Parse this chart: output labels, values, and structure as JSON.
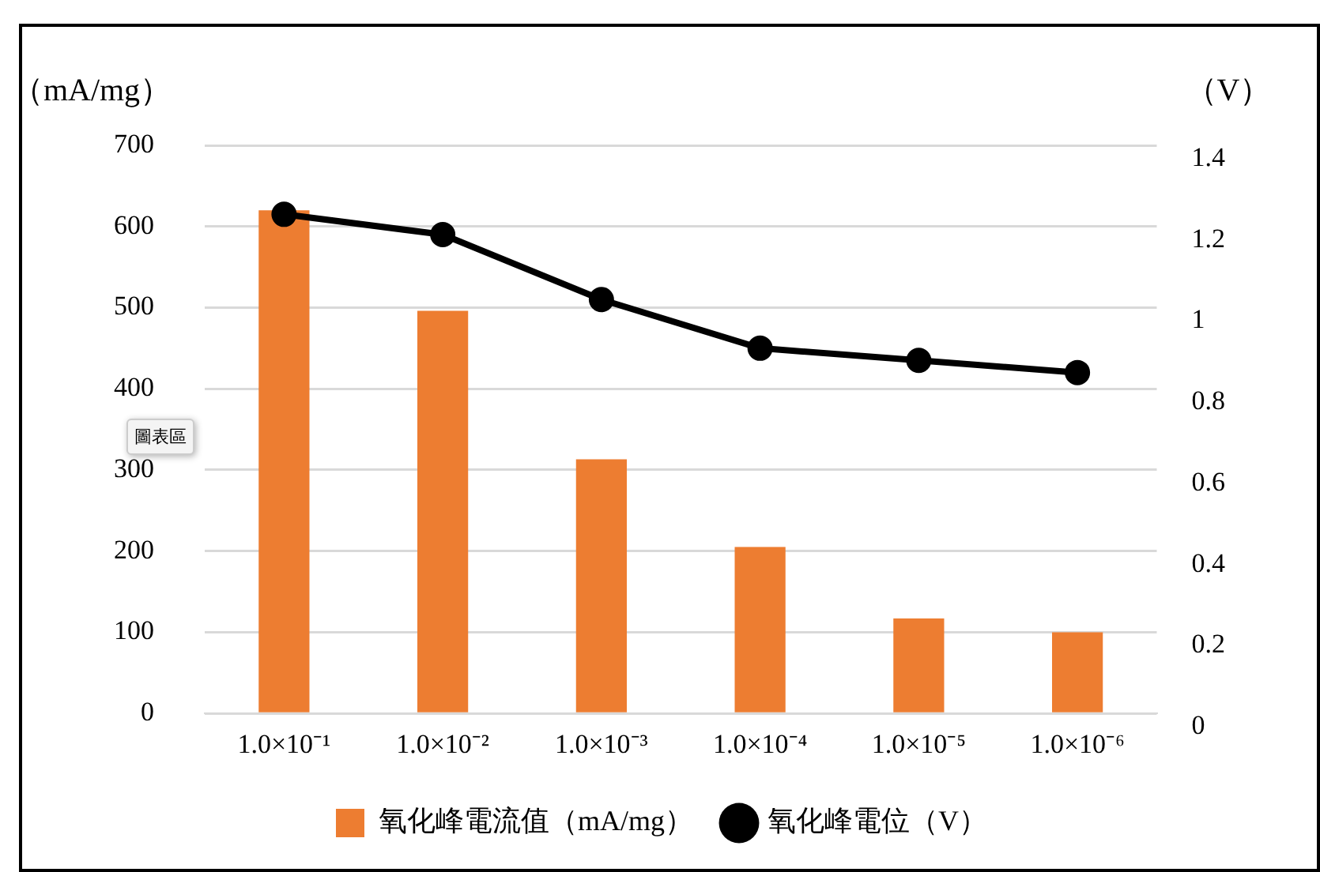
{
  "chart_data": {
    "type": "bar",
    "categories": [
      "1.0×10⁻¹",
      "1.0×10⁻²",
      "1.0×10⁻³",
      "1.0×10⁻⁴",
      "1.0×10⁻⁵",
      "1.0×10⁻⁶"
    ],
    "series": [
      {
        "name": "氧化峰電流值（mA/mg）",
        "color": "#ed7d31",
        "values": [
          620,
          496,
          313,
          205,
          117,
          100
        ]
      },
      {
        "name": "氧化峰電位（V）",
        "type": "line",
        "axis": "y2",
        "color": "#000000",
        "values": [
          1.23,
          1.18,
          1.02,
          0.9,
          0.87,
          0.84
        ]
      }
    ],
    "ylabel": "（mA/mg）",
    "y2label": "（V）",
    "ylim": [
      0,
      700
    ],
    "yticks": [
      0,
      100,
      200,
      300,
      400,
      500,
      600,
      700
    ],
    "y2lim": [
      0,
      1.4
    ],
    "y2ticks": [
      0,
      0.2,
      0.4,
      0.6,
      0.8,
      1,
      1.2,
      1.4
    ],
    "grid": "y",
    "legend": "bottom",
    "marker": "circle",
    "line_style": "solid",
    "annotations": [
      "圖表區"
    ]
  }
}
